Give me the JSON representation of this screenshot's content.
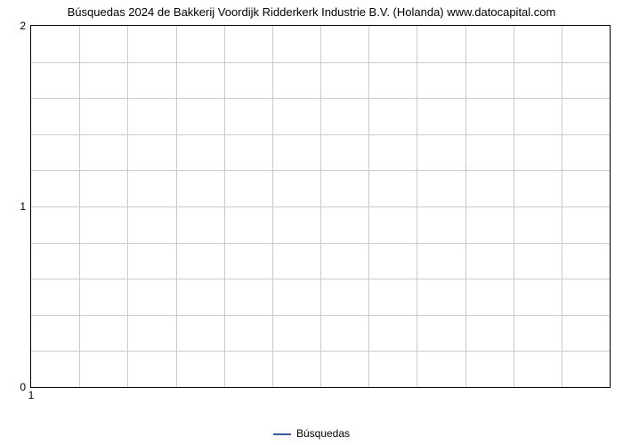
{
  "chart": {
    "type": "line",
    "title": "Búsquedas 2024 de Bakkerij Voordijk Ridderkerk Industrie B.V. (Holanda) www.datocapital.com",
    "title_fontsize": 13,
    "title_color": "#000000",
    "background_color": "#ffffff",
    "border_color": "#000000",
    "grid_color": "#cccccc",
    "x": {
      "min": 1,
      "max": 13,
      "major_ticks": [
        1
      ],
      "minor_grid_count": 12,
      "label_fontsize": 12
    },
    "y": {
      "min": 0,
      "max": 2,
      "major_ticks": [
        0,
        1,
        2
      ],
      "minor_per_major": 4,
      "label_fontsize": 12
    },
    "series": [
      {
        "name": "Búsquedas",
        "color": "#385c9b",
        "line_width": 2,
        "data": []
      }
    ],
    "legend": {
      "position": "bottom-center",
      "fontsize": 12,
      "text_color": "#000000"
    }
  }
}
